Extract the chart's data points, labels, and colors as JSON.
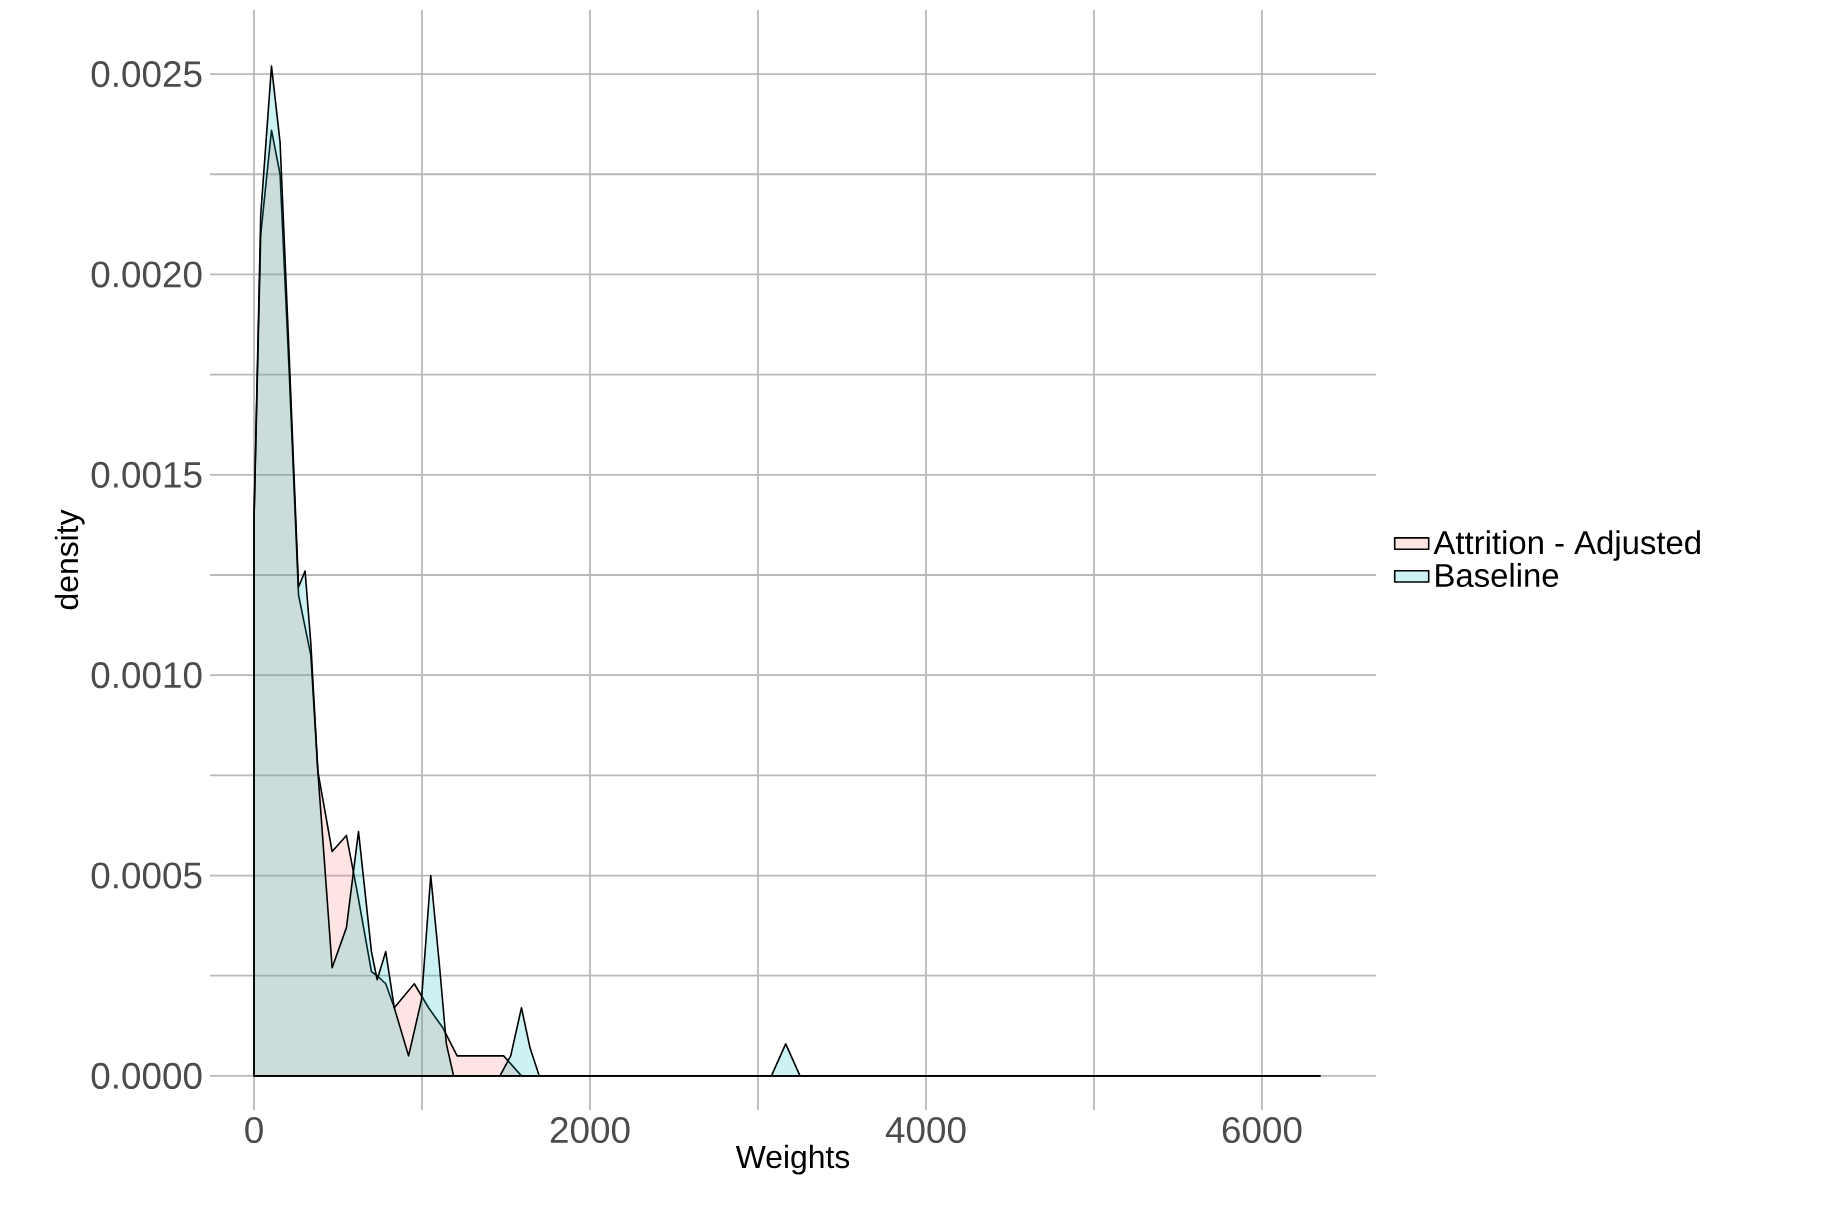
{
  "chart_data": {
    "type": "area",
    "xlabel": "Weights",
    "ylabel": "density",
    "xlim": [
      -262,
      6679
    ],
    "ylim": [
      -8.5e-05,
      0.00266
    ],
    "xticks": [
      0,
      2000,
      4000,
      6000
    ],
    "yticks": [
      {
        "value": 0,
        "label": "0.0000"
      },
      {
        "value": 0.0005,
        "label": "0.0005"
      },
      {
        "value": 0.001,
        "label": "0.0010"
      },
      {
        "value": 0.0015,
        "label": "0.0015"
      },
      {
        "value": 0.002,
        "label": "0.0020"
      },
      {
        "value": 0.0025,
        "label": "0.0025"
      }
    ],
    "grid": true,
    "legend": "right",
    "series": [
      {
        "name": "Attrition - Adjusted",
        "color": "#f8766d",
        "x": [
          0,
          40,
          104,
          155,
          210,
          265,
          338,
          380,
          465,
          550,
          614,
          699,
          733,
          784,
          835,
          954,
          1039,
          1124,
          1209,
          1294,
          1400,
          1486,
          1592,
          1719,
          2017,
          2145,
          2336,
          2442,
          3000,
          6345
        ],
        "values": [
          0.00139,
          0.0021,
          0.00236,
          0.00225,
          0.00175,
          0.0012,
          0.00105,
          0.00076,
          0.00056,
          0.0006,
          0.00046,
          0.00026,
          0.00025,
          0.00023,
          0.00017,
          0.00023,
          0.00017,
          0.00012,
          5e-05,
          5e-05,
          5e-05,
          5e-05,
          0,
          0,
          0,
          0,
          0,
          0,
          0,
          0
        ]
      },
      {
        "name": "Baseline",
        "color": "#00bfc4",
        "x": [
          0,
          40,
          104,
          155,
          210,
          265,
          304,
          338,
          380,
          465,
          550,
          622,
          699,
          733,
          784,
          835,
          920,
          997,
          1052,
          1103,
          1145,
          1188,
          1464,
          1528,
          1592,
          1643,
          1698,
          2995,
          3080,
          3165,
          3250,
          3400,
          6345
        ],
        "values": [
          0.00139,
          0.00215,
          0.00252,
          0.00233,
          0.00179,
          0.00122,
          0.00126,
          0.00108,
          0.00076,
          0.00027,
          0.00037,
          0.00061,
          0.00031,
          0.00024,
          0.00031,
          0.00017,
          5e-05,
          0.00019,
          0.0005,
          0.00028,
          8e-05,
          0,
          0,
          5e-05,
          0.00017,
          7e-05,
          0,
          0,
          0,
          8e-05,
          0,
          0,
          0
        ]
      }
    ]
  }
}
